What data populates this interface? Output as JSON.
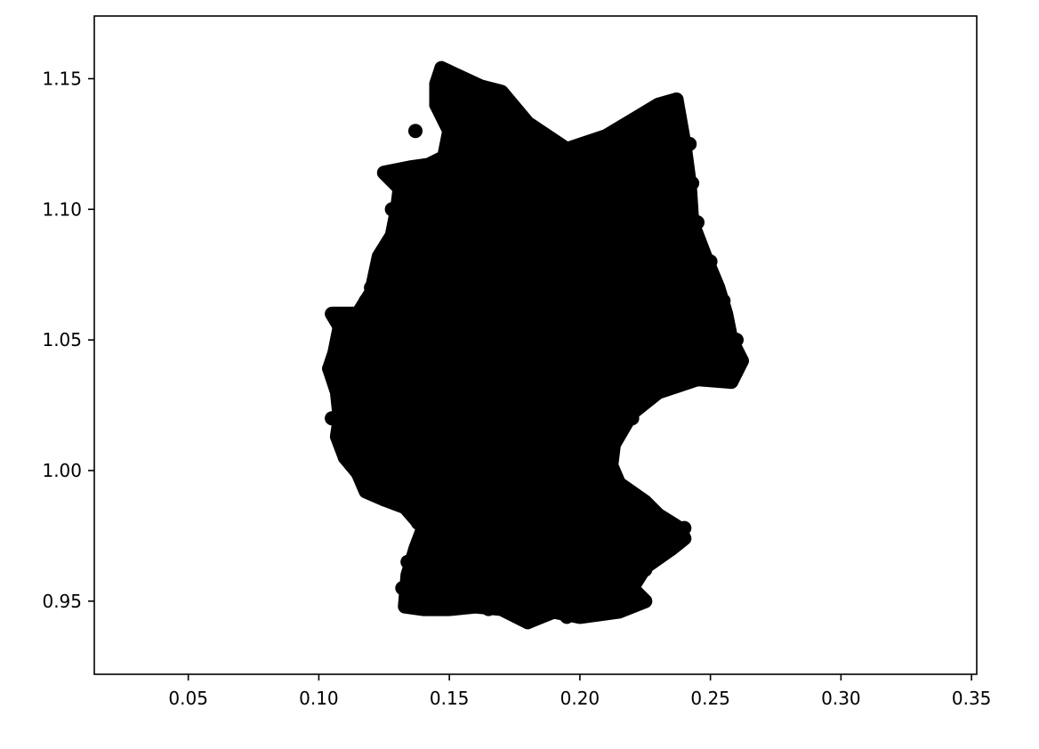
{
  "chart_data": {
    "type": "scatter",
    "title": "",
    "xlabel": "",
    "ylabel": "",
    "xlim": [
      0.014,
      0.352
    ],
    "ylim": [
      0.922,
      1.174
    ],
    "grid": false,
    "legend": null,
    "marker_color": "#000000",
    "xticks": [
      {
        "value": 0.05,
        "label": "0.05"
      },
      {
        "value": 0.1,
        "label": "0.10"
      },
      {
        "value": 0.15,
        "label": "0.15"
      },
      {
        "value": 0.2,
        "label": "0.20"
      },
      {
        "value": 0.25,
        "label": "0.25"
      },
      {
        "value": 0.3,
        "label": "0.30"
      },
      {
        "value": 0.35,
        "label": "0.35"
      }
    ],
    "yticks": [
      {
        "value": 0.95,
        "label": "0.95"
      },
      {
        "value": 1.0,
        "label": "1.00"
      },
      {
        "value": 1.05,
        "label": "1.05"
      },
      {
        "value": 1.1,
        "label": "1.10"
      },
      {
        "value": 1.15,
        "label": "1.15"
      }
    ],
    "x": [
      0.147,
      0.162,
      0.178,
      0.195,
      0.21,
      0.227,
      0.237,
      0.242,
      0.243,
      0.245,
      0.25,
      0.255,
      0.26,
      0.262,
      0.258,
      0.245,
      0.23,
      0.22,
      0.212,
      0.215,
      0.22,
      0.225,
      0.23,
      0.24,
      0.238,
      0.235,
      0.225,
      0.21,
      0.2,
      0.195,
      0.18,
      0.165,
      0.155,
      0.145,
      0.135,
      0.132,
      0.134,
      0.14,
      0.138,
      0.13,
      0.125,
      0.12,
      0.115,
      0.11,
      0.108,
      0.105,
      0.104,
      0.106,
      0.11,
      0.115,
      0.118,
      0.12,
      0.125,
      0.13,
      0.128,
      0.135,
      0.138,
      0.142,
      0.148,
      0.145,
      0.15,
      0.137,
      0.155,
      0.16,
      0.17,
      0.18,
      0.19,
      0.2,
      0.165,
      0.175,
      0.185,
      0.195,
      0.205,
      0.215,
      0.16,
      0.17,
      0.18,
      0.19,
      0.2,
      0.21,
      0.15,
      0.16,
      0.17,
      0.18,
      0.19,
      0.2,
      0.21,
      0.22,
      0.14,
      0.15,
      0.16,
      0.17,
      0.18,
      0.19,
      0.2,
      0.145,
      0.155,
      0.165,
      0.175,
      0.185,
      0.195,
      0.205,
      0.15,
      0.16,
      0.17,
      0.18,
      0.19,
      0.2,
      0.155,
      0.165,
      0.175,
      0.185,
      0.195
    ],
    "y": [
      1.154,
      1.147,
      1.135,
      1.123,
      1.128,
      1.132,
      1.142,
      1.125,
      1.11,
      1.095,
      1.08,
      1.065,
      1.05,
      1.042,
      1.034,
      1.035,
      1.03,
      1.02,
      1.005,
      0.995,
      0.99,
      0.985,
      0.98,
      0.978,
      0.974,
      0.97,
      0.962,
      0.955,
      0.95,
      0.944,
      0.942,
      0.947,
      0.948,
      0.947,
      0.948,
      0.955,
      0.965,
      0.972,
      0.98,
      0.988,
      0.989,
      0.993,
      0.999,
      1.005,
      1.012,
      1.02,
      1.039,
      1.045,
      1.055,
      1.06,
      1.065,
      1.07,
      1.082,
      1.09,
      1.1,
      1.11,
      1.115,
      1.117,
      1.12,
      1.14,
      1.15,
      1.13,
      1.14,
      1.13,
      1.12,
      1.115,
      1.115,
      1.11,
      1.1,
      1.1,
      1.1,
      1.1,
      1.105,
      1.09,
      1.08,
      1.08,
      1.08,
      1.08,
      1.08,
      1.07,
      1.06,
      1.06,
      1.06,
      1.06,
      1.06,
      1.05,
      1.05,
      1.05,
      1.04,
      1.04,
      1.04,
      1.04,
      1.04,
      1.03,
      1.03,
      1.02,
      1.02,
      1.02,
      1.02,
      1.01,
      1.0,
      1.0,
      0.99,
      0.99,
      0.99,
      0.98,
      0.98,
      0.97,
      0.97,
      0.965,
      0.96,
      0.96,
      0.96
    ],
    "fill_region": [
      [
        0.147,
        1.154
      ],
      [
        0.162,
        1.147
      ],
      [
        0.17,
        1.145
      ],
      [
        0.18,
        1.133
      ],
      [
        0.195,
        1.123
      ],
      [
        0.21,
        1.128
      ],
      [
        0.22,
        1.134
      ],
      [
        0.23,
        1.14
      ],
      [
        0.237,
        1.142
      ],
      [
        0.24,
        1.125
      ],
      [
        0.242,
        1.11
      ],
      [
        0.243,
        1.095
      ],
      [
        0.248,
        1.082
      ],
      [
        0.253,
        1.07
      ],
      [
        0.256,
        1.06
      ],
      [
        0.258,
        1.05
      ],
      [
        0.262,
        1.042
      ],
      [
        0.258,
        1.034
      ],
      [
        0.245,
        1.035
      ],
      [
        0.23,
        1.03
      ],
      [
        0.22,
        1.022
      ],
      [
        0.213,
        1.01
      ],
      [
        0.212,
        1.002
      ],
      [
        0.215,
        0.995
      ],
      [
        0.225,
        0.988
      ],
      [
        0.23,
        0.983
      ],
      [
        0.238,
        0.978
      ],
      [
        0.24,
        0.974
      ],
      [
        0.235,
        0.97
      ],
      [
        0.225,
        0.963
      ],
      [
        0.22,
        0.955
      ],
      [
        0.225,
        0.95
      ],
      [
        0.215,
        0.946
      ],
      [
        0.2,
        0.944
      ],
      [
        0.19,
        0.946
      ],
      [
        0.18,
        0.942
      ],
      [
        0.17,
        0.947
      ],
      [
        0.16,
        0.948
      ],
      [
        0.15,
        0.947
      ],
      [
        0.14,
        0.947
      ],
      [
        0.133,
        0.948
      ],
      [
        0.134,
        0.96
      ],
      [
        0.137,
        0.97
      ],
      [
        0.14,
        0.978
      ],
      [
        0.133,
        0.986
      ],
      [
        0.125,
        0.989
      ],
      [
        0.118,
        0.992
      ],
      [
        0.115,
        0.999
      ],
      [
        0.11,
        1.005
      ],
      [
        0.107,
        1.013
      ],
      [
        0.108,
        1.02
      ],
      [
        0.107,
        1.03
      ],
      [
        0.104,
        1.039
      ],
      [
        0.106,
        1.045
      ],
      [
        0.108,
        1.055
      ],
      [
        0.105,
        1.06
      ],
      [
        0.115,
        1.06
      ],
      [
        0.12,
        1.068
      ],
      [
        0.123,
        1.082
      ],
      [
        0.128,
        1.09
      ],
      [
        0.13,
        1.1
      ],
      [
        0.131,
        1.108
      ],
      [
        0.125,
        1.114
      ],
      [
        0.135,
        1.116
      ],
      [
        0.142,
        1.117
      ],
      [
        0.148,
        1.12
      ],
      [
        0.15,
        1.13
      ],
      [
        0.145,
        1.14
      ],
      [
        0.145,
        1.148
      ]
    ]
  }
}
